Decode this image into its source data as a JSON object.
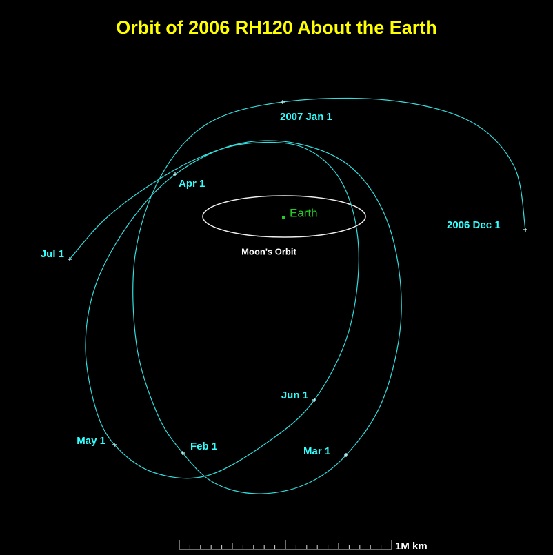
{
  "title": "Orbit of 2006 RH120 About the Earth",
  "dates": [
    "2006 Dec 1",
    "2007 Jan 1",
    "Feb 1",
    "Mar 1",
    "Apr 1",
    "May 1",
    "Jun 1",
    "Jul 1"
  ],
  "earth": "Earth",
  "moon_orbit": "Moon's Orbit",
  "scale": "1M km"
}
